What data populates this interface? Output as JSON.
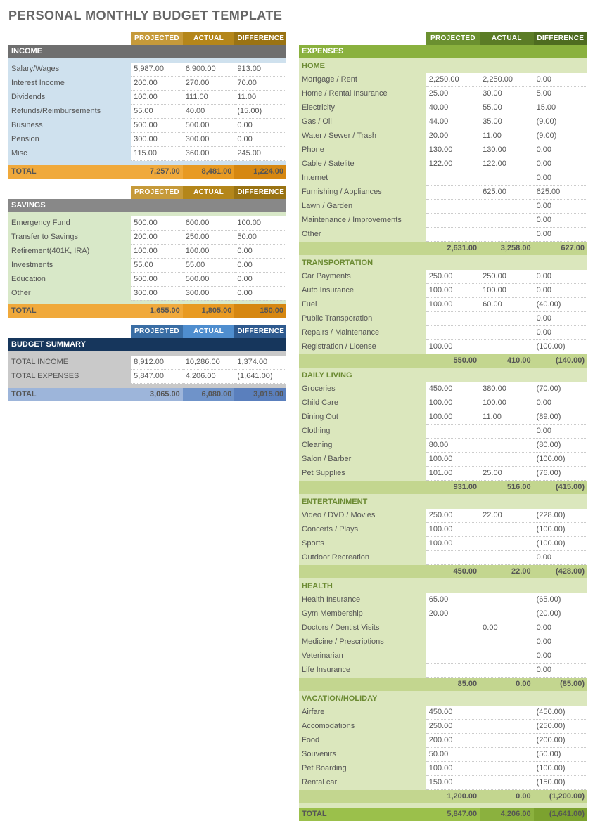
{
  "title": "PERSONAL MONTHLY BUDGET TEMPLATE",
  "columns": [
    "PROJECTED",
    "ACTUAL",
    "DIFFERENCE"
  ],
  "colors": {
    "inc_hdr": [
      "#c69a3a",
      "#b4861a",
      "#9a7313"
    ],
    "inc_bar": "#6f6f6f",
    "inc_body": "#cfe1ee",
    "inc_total": [
      "#f0a93b",
      "#e89a22",
      "#d68711"
    ],
    "sav_bar": "#888888",
    "sav_body": "#d8e8c8",
    "sum_hdr": [
      "#3a6ea5",
      "#4f8ecf",
      "#2e5a8f"
    ],
    "sum_bar": "#16365c",
    "sum_body": "#c9c9c9",
    "sum_total": [
      "#9db5da",
      "#6f93c9",
      "#5a7fbd"
    ],
    "exp_hdr": [
      "#6b9030",
      "#5b7c26",
      "#4e6b20"
    ],
    "exp_bar": "#8ab13e",
    "exp_body": "#dbe7bd",
    "exp_sub": "#c3d68f",
    "exp_total": [
      "#9bc04b",
      "#8bb13e",
      "#7ca22f"
    ]
  },
  "income": {
    "label": "INCOME",
    "rows": [
      [
        "Salary/Wages",
        "5,987.00",
        "6,900.00",
        "913.00"
      ],
      [
        "Interest Income",
        "200.00",
        "270.00",
        "70.00"
      ],
      [
        "Dividends",
        "100.00",
        "111.00",
        "11.00"
      ],
      [
        "Refunds/Reimbursements",
        "55.00",
        "40.00",
        "(15.00)"
      ],
      [
        "Business",
        "500.00",
        "500.00",
        "0.00"
      ],
      [
        "Pension",
        "300.00",
        "300.00",
        "0.00"
      ],
      [
        "Misc",
        "115.00",
        "360.00",
        "245.00"
      ]
    ],
    "total": [
      "TOTAL",
      "7,257.00",
      "8,481.00",
      "1,224.00"
    ]
  },
  "savings": {
    "label": "SAVINGS",
    "rows": [
      [
        "Emergency Fund",
        "500.00",
        "600.00",
        "100.00"
      ],
      [
        "Transfer to Savings",
        "200.00",
        "250.00",
        "50.00"
      ],
      [
        "Retirement(401K, IRA)",
        "100.00",
        "100.00",
        "0.00"
      ],
      [
        "Investments",
        "55.00",
        "55.00",
        "0.00"
      ],
      [
        "Education",
        "500.00",
        "500.00",
        "0.00"
      ],
      [
        "Other",
        "300.00",
        "300.00",
        "0.00"
      ]
    ],
    "total": [
      "TOTAL",
      "1,655.00",
      "1,805.00",
      "150.00"
    ]
  },
  "summary": {
    "label": "BUDGET SUMMARY",
    "rows": [
      [
        "TOTAL INCOME",
        "8,912.00",
        "10,286.00",
        "1,374.00"
      ],
      [
        "TOTAL EXPENSES",
        "5,847.00",
        "4,206.00",
        "(1,641.00)"
      ]
    ],
    "total": [
      "TOTAL",
      "3,065.00",
      "6,080.00",
      "3,015.00"
    ]
  },
  "expenses": {
    "label": "EXPENSES",
    "groups": [
      {
        "name": "HOME",
        "rows": [
          [
            "Mortgage / Rent",
            "2,250.00",
            "2,250.00",
            "0.00"
          ],
          [
            "Home / Rental Insurance",
            "25.00",
            "30.00",
            "5.00"
          ],
          [
            "Electricity",
            "40.00",
            "55.00",
            "15.00"
          ],
          [
            "Gas / Oil",
            "44.00",
            "35.00",
            "(9.00)"
          ],
          [
            "Water / Sewer / Trash",
            "20.00",
            "11.00",
            "(9.00)"
          ],
          [
            "Phone",
            "130.00",
            "130.00",
            "0.00"
          ],
          [
            "Cable / Satelite",
            "122.00",
            "122.00",
            "0.00"
          ],
          [
            "Internet",
            "",
            "",
            "0.00"
          ],
          [
            "Furnishing / Appliances",
            "",
            "625.00",
            "625.00"
          ],
          [
            "Lawn / Garden",
            "",
            "",
            "0.00"
          ],
          [
            "Maintenance / Improvements",
            "",
            "",
            "0.00"
          ],
          [
            "Other",
            "",
            "",
            "0.00"
          ]
        ],
        "subtotal": [
          "",
          "2,631.00",
          "3,258.00",
          "627.00"
        ]
      },
      {
        "name": "TRANSPORTATION",
        "rows": [
          [
            "Car Payments",
            "250.00",
            "250.00",
            "0.00"
          ],
          [
            "Auto Insurance",
            "100.00",
            "100.00",
            "0.00"
          ],
          [
            "Fuel",
            "100.00",
            "60.00",
            "(40.00)"
          ],
          [
            "Public Transporation",
            "",
            "",
            "0.00"
          ],
          [
            "Repairs / Maintenance",
            "",
            "",
            "0.00"
          ],
          [
            "Registration / License",
            "100.00",
            "",
            "(100.00)"
          ]
        ],
        "subtotal": [
          "",
          "550.00",
          "410.00",
          "(140.00)"
        ]
      },
      {
        "name": "DAILY LIVING",
        "rows": [
          [
            "Groceries",
            "450.00",
            "380.00",
            "(70.00)"
          ],
          [
            "Child Care",
            "100.00",
            "100.00",
            "0.00"
          ],
          [
            "Dining Out",
            "100.00",
            "11.00",
            "(89.00)"
          ],
          [
            "Clothing",
            "",
            "",
            "0.00"
          ],
          [
            "Cleaning",
            "80.00",
            "",
            "(80.00)"
          ],
          [
            "Salon / Barber",
            "100.00",
            "",
            "(100.00)"
          ],
          [
            "Pet Supplies",
            "101.00",
            "25.00",
            "(76.00)"
          ]
        ],
        "subtotal": [
          "",
          "931.00",
          "516.00",
          "(415.00)"
        ]
      },
      {
        "name": "ENTERTAINMENT",
        "rows": [
          [
            "Video / DVD / Movies",
            "250.00",
            "22.00",
            "(228.00)"
          ],
          [
            "Concerts / Plays",
            "100.00",
            "",
            "(100.00)"
          ],
          [
            "Sports",
            "100.00",
            "",
            "(100.00)"
          ],
          [
            "Outdoor Recreation",
            "",
            "",
            "0.00"
          ]
        ],
        "subtotal": [
          "",
          "450.00",
          "22.00",
          "(428.00)"
        ]
      },
      {
        "name": "HEALTH",
        "rows": [
          [
            "Health Insurance",
            "65.00",
            "",
            "(65.00)"
          ],
          [
            "Gym Membership",
            "20.00",
            "",
            "(20.00)"
          ],
          [
            "Doctors / Dentist Visits",
            "",
            "0.00",
            "0.00"
          ],
          [
            "Medicine / Prescriptions",
            "",
            "",
            "0.00"
          ],
          [
            "Veterinarian",
            "",
            "",
            "0.00"
          ],
          [
            "Life Insurance",
            "",
            "",
            "0.00"
          ]
        ],
        "subtotal": [
          "",
          "85.00",
          "0.00",
          "(85.00)"
        ]
      },
      {
        "name": "VACATION/HOLIDAY",
        "rows": [
          [
            "Airfare",
            "450.00",
            "",
            "(450.00)"
          ],
          [
            "Accomodations",
            "250.00",
            "",
            "(250.00)"
          ],
          [
            "Food",
            "200.00",
            "",
            "(200.00)"
          ],
          [
            "Souvenirs",
            "50.00",
            "",
            "(50.00)"
          ],
          [
            "Pet Boarding",
            "100.00",
            "",
            "(100.00)"
          ],
          [
            "Rental car",
            "150.00",
            "",
            "(150.00)"
          ]
        ],
        "subtotal": [
          "",
          "1,200.00",
          "0.00",
          "(1,200.00)"
        ]
      }
    ],
    "total": [
      "TOTAL",
      "5,847.00",
      "4,206.00",
      "(1,641.00)"
    ]
  }
}
